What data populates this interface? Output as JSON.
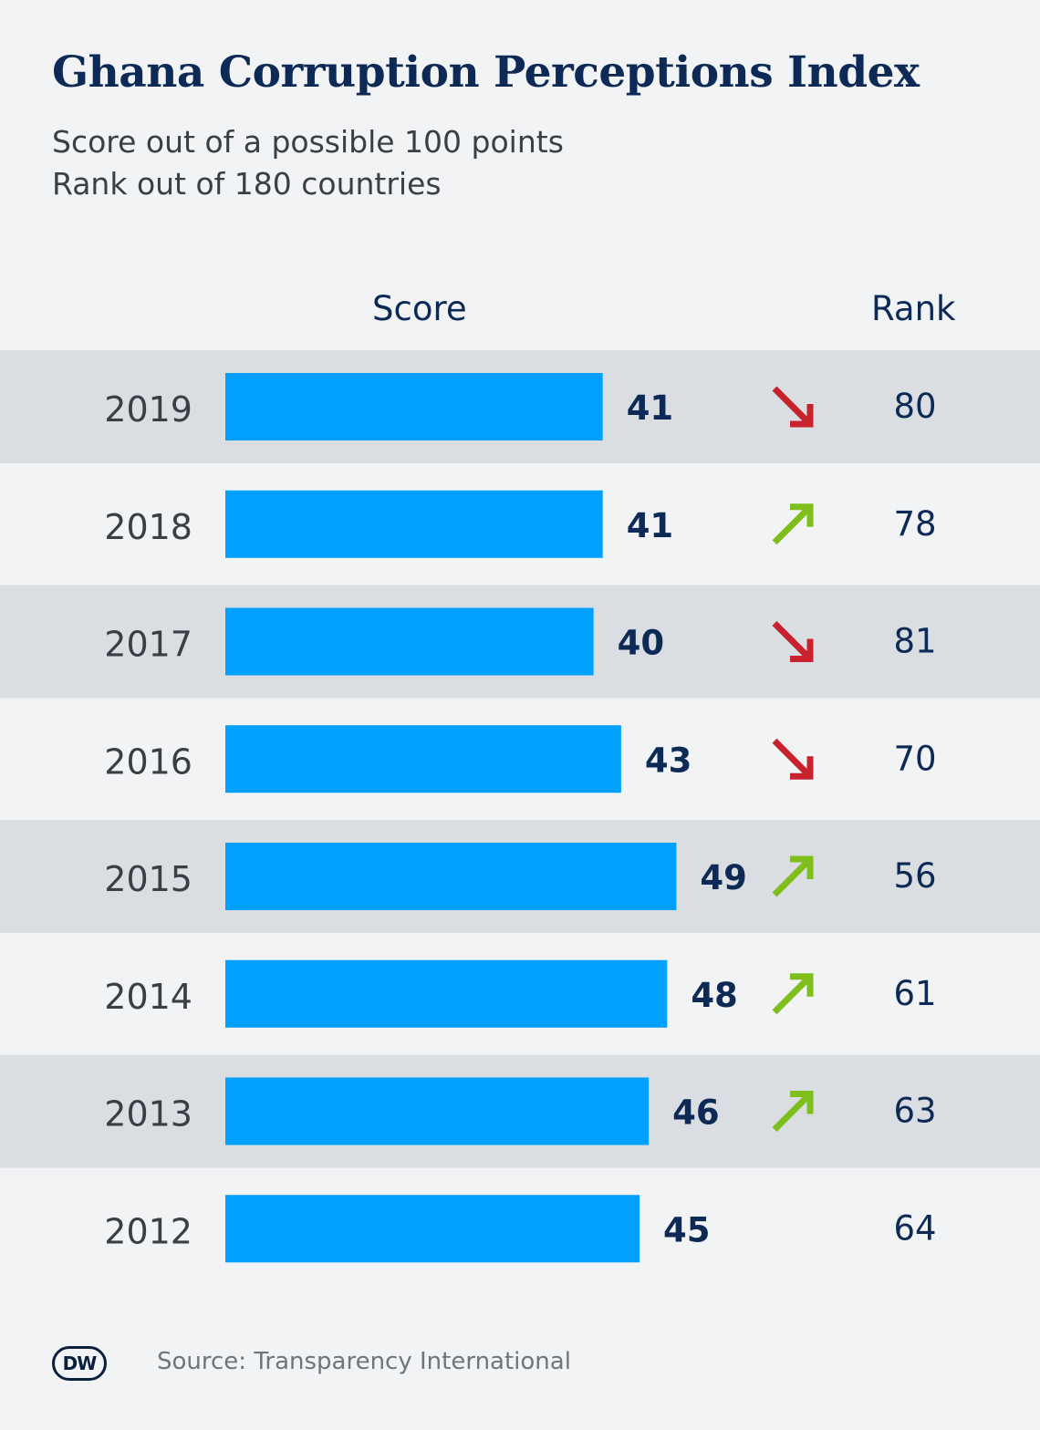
{
  "title": "Ghana Corruption Perceptions Index",
  "subtitle_line1": "Score out of a possible 100 points",
  "subtitle_line2": "Rank out of 180 countries",
  "source": "Source: Transparency International",
  "logo_text": "DW",
  "colors": {
    "bar": "#00a0ff",
    "row_shade": "#dadee2",
    "arrow_down": "#c8222d",
    "arrow_up": "#7fbf1b",
    "title": "#0c2a55"
  },
  "chart_data": {
    "type": "bar",
    "orientation": "horizontal",
    "column_headers": [
      "Score",
      "Rank"
    ],
    "categories": [
      "2019",
      "2018",
      "2017",
      "2016",
      "2015",
      "2014",
      "2013",
      "2012"
    ],
    "series": [
      {
        "name": "Score",
        "values": [
          41,
          41,
          40,
          43,
          49,
          48,
          46,
          45
        ]
      },
      {
        "name": "Rank",
        "values": [
          80,
          78,
          81,
          70,
          56,
          61,
          63,
          64
        ]
      }
    ],
    "rank_trend": [
      "down",
      "up",
      "down",
      "down",
      "up",
      "up",
      "up",
      ""
    ],
    "xlim": [
      0,
      100
    ],
    "grid": false
  }
}
